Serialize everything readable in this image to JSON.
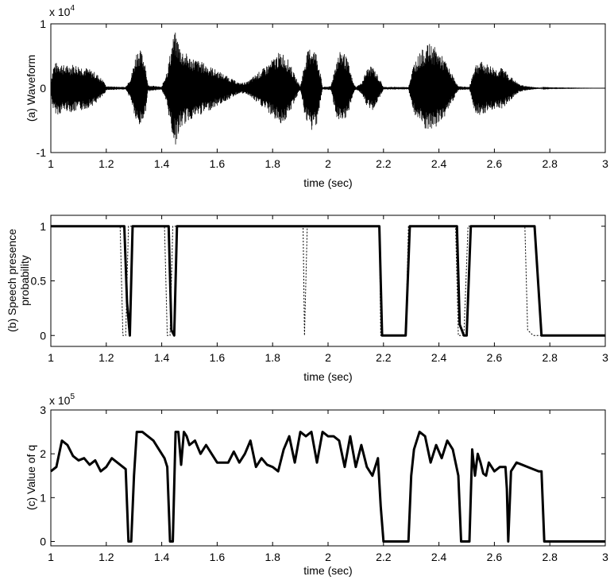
{
  "chart_data": [
    {
      "type": "line",
      "panel": "a",
      "ylabel": "(a) Waveform",
      "xlabel": "time (sec)",
      "xlim": [
        1,
        3
      ],
      "ylim": [
        -1,
        1
      ],
      "xticks": [
        "1",
        "1.2",
        "1.4",
        "1.6",
        "1.8",
        "2",
        "2.2",
        "2.4",
        "2.6",
        "2.8",
        "3"
      ],
      "yticks": [
        "-1",
        "0",
        "1"
      ],
      "exponent": {
        "base": "x 10",
        "power": "4"
      },
      "grid": false,
      "series": [
        {
          "style": "solid-thin",
          "description_envelope": [
            [
              1.0,
              0.12
            ],
            [
              1.01,
              0.38
            ],
            [
              1.03,
              0.42
            ],
            [
              1.05,
              0.35
            ],
            [
              1.08,
              0.38
            ],
            [
              1.12,
              0.34
            ],
            [
              1.16,
              0.25
            ],
            [
              1.19,
              0.12
            ],
            [
              1.2,
              0.03
            ],
            [
              1.27,
              0.02
            ],
            [
              1.29,
              0.2
            ],
            [
              1.31,
              0.6
            ],
            [
              1.32,
              0.62
            ],
            [
              1.34,
              0.45
            ],
            [
              1.35,
              0.05
            ],
            [
              1.4,
              0.02
            ],
            [
              1.42,
              0.3
            ],
            [
              1.44,
              0.78
            ],
            [
              1.45,
              0.88
            ],
            [
              1.47,
              0.62
            ],
            [
              1.5,
              0.5
            ],
            [
              1.55,
              0.4
            ],
            [
              1.6,
              0.28
            ],
            [
              1.64,
              0.18
            ],
            [
              1.68,
              0.08
            ],
            [
              1.71,
              0.1
            ],
            [
              1.74,
              0.22
            ],
            [
              1.77,
              0.32
            ],
            [
              1.8,
              0.45
            ],
            [
              1.82,
              0.55
            ],
            [
              1.84,
              0.55
            ],
            [
              1.86,
              0.42
            ],
            [
              1.88,
              0.2
            ],
            [
              1.9,
              0.03
            ],
            [
              1.92,
              0.52
            ],
            [
              1.94,
              0.68
            ],
            [
              1.96,
              0.55
            ],
            [
              1.97,
              0.3
            ],
            [
              1.98,
              0.02
            ],
            [
              2.01,
              0.03
            ],
            [
              2.03,
              0.45
            ],
            [
              2.05,
              0.62
            ],
            [
              2.07,
              0.45
            ],
            [
              2.09,
              0.1
            ],
            [
              2.1,
              0.02
            ],
            [
              2.12,
              0.08
            ],
            [
              2.14,
              0.3
            ],
            [
              2.16,
              0.35
            ],
            [
              2.18,
              0.2
            ],
            [
              2.2,
              0.02
            ],
            [
              2.29,
              0.02
            ],
            [
              2.31,
              0.4
            ],
            [
              2.33,
              0.55
            ],
            [
              2.35,
              0.65
            ],
            [
              2.37,
              0.7
            ],
            [
              2.39,
              0.62
            ],
            [
              2.42,
              0.45
            ],
            [
              2.45,
              0.2
            ],
            [
              2.47,
              0.03
            ],
            [
              2.51,
              0.02
            ],
            [
              2.53,
              0.38
            ],
            [
              2.55,
              0.42
            ],
            [
              2.57,
              0.38
            ],
            [
              2.59,
              0.35
            ],
            [
              2.61,
              0.3
            ],
            [
              2.63,
              0.32
            ],
            [
              2.66,
              0.18
            ],
            [
              2.69,
              0.06
            ],
            [
              2.72,
              0.03
            ],
            [
              2.76,
              0.01
            ],
            [
              2.8,
              0.005
            ],
            [
              3.0,
              0.0
            ]
          ]
        }
      ]
    },
    {
      "type": "line",
      "panel": "b",
      "ylabel_line1": "(b) Speech presence",
      "ylabel_line2": "probability",
      "xlabel": "time (sec)",
      "xlim": [
        1,
        3
      ],
      "ylim": [
        -0.1,
        1.1
      ],
      "xticks": [
        "1",
        "1.2",
        "1.4",
        "1.6",
        "1.8",
        "2",
        "2.2",
        "2.4",
        "2.6",
        "2.8",
        "3"
      ],
      "yticks": [
        "0",
        "0.5",
        "1"
      ],
      "grid": false,
      "series": [
        {
          "style": "solid-thick",
          "x": [
            1.0,
            1.265,
            1.275,
            1.285,
            1.295,
            1.425,
            1.435,
            1.445,
            1.455,
            2.185,
            2.195,
            2.28,
            2.295,
            2.465,
            2.475,
            2.49,
            2.5,
            2.515,
            2.745,
            2.755,
            2.77,
            2.785,
            3.0
          ],
          "y": [
            1.0,
            1.0,
            0.3,
            0.0,
            1.0,
            1.0,
            0.05,
            0.0,
            1.0,
            1.0,
            0.0,
            0.0,
            1.0,
            1.0,
            0.1,
            0.0,
            0.0,
            1.0,
            1.0,
            0.6,
            0.0,
            0.0,
            0.0
          ]
        },
        {
          "style": "dotted",
          "x": [
            1.0,
            1.25,
            1.26,
            1.27,
            1.28,
            1.41,
            1.42,
            1.43,
            1.44,
            1.91,
            1.915,
            1.925,
            2.185,
            2.19,
            2.19,
            2.28,
            2.29,
            2.46,
            2.47,
            2.49,
            2.505,
            2.71,
            2.72,
            2.74,
            2.76,
            3.0
          ],
          "y": [
            1.0,
            1.0,
            0.0,
            0.0,
            1.0,
            1.0,
            0.0,
            0.0,
            1.0,
            1.0,
            0.0,
            1.0,
            1.0,
            0.0,
            0.0,
            0.0,
            1.0,
            1.0,
            0.0,
            0.0,
            1.0,
            1.0,
            0.05,
            0.0,
            0.0,
            0.0
          ]
        }
      ]
    },
    {
      "type": "line",
      "panel": "c",
      "ylabel": "(c) Value of q",
      "xlabel": "time (sec)",
      "xlim": [
        1,
        3
      ],
      "ylim": [
        -0.1,
        3
      ],
      "xticks": [
        "1",
        "1.2",
        "1.4",
        "1.6",
        "1.8",
        "2",
        "2.2",
        "2.4",
        "2.6",
        "2.8",
        "3"
      ],
      "yticks": [
        "0",
        "1",
        "2",
        "3"
      ],
      "exponent": {
        "base": "x 10",
        "power": "5"
      },
      "grid": false,
      "series": [
        {
          "style": "solid-thick",
          "x": [
            1.0,
            1.02,
            1.04,
            1.06,
            1.08,
            1.1,
            1.12,
            1.14,
            1.16,
            1.18,
            1.2,
            1.22,
            1.24,
            1.26,
            1.27,
            1.28,
            1.29,
            1.3,
            1.31,
            1.33,
            1.35,
            1.37,
            1.39,
            1.41,
            1.42,
            1.43,
            1.44,
            1.45,
            1.46,
            1.47,
            1.48,
            1.49,
            1.5,
            1.52,
            1.54,
            1.56,
            1.58,
            1.6,
            1.62,
            1.64,
            1.66,
            1.68,
            1.7,
            1.72,
            1.74,
            1.76,
            1.78,
            1.8,
            1.82,
            1.84,
            1.86,
            1.88,
            1.9,
            1.92,
            1.94,
            1.96,
            1.98,
            2.0,
            2.02,
            2.04,
            2.06,
            2.08,
            2.1,
            2.12,
            2.14,
            2.16,
            2.18,
            2.19,
            2.2,
            2.22,
            2.24,
            2.26,
            2.28,
            2.29,
            2.3,
            2.31,
            2.33,
            2.35,
            2.37,
            2.39,
            2.41,
            2.43,
            2.45,
            2.47,
            2.48,
            2.49,
            2.5,
            2.51,
            2.52,
            2.53,
            2.54,
            2.55,
            2.56,
            2.57,
            2.58,
            2.6,
            2.62,
            2.64,
            2.645,
            2.65,
            2.66,
            2.68,
            2.7,
            2.72,
            2.74,
            2.76,
            2.77,
            2.78,
            2.8,
            2.9,
            3.0
          ],
          "y": [
            1.6,
            1.7,
            2.3,
            2.2,
            1.95,
            1.85,
            1.9,
            1.75,
            1.85,
            1.6,
            1.7,
            1.9,
            1.8,
            1.7,
            1.65,
            0.0,
            0.0,
            1.5,
            2.5,
            2.5,
            2.4,
            2.3,
            2.1,
            1.9,
            1.7,
            0.0,
            0.0,
            2.5,
            2.5,
            1.75,
            2.5,
            2.4,
            2.2,
            2.3,
            2.0,
            2.2,
            2.0,
            1.8,
            1.8,
            1.8,
            2.05,
            1.8,
            2.0,
            2.3,
            1.7,
            1.9,
            1.75,
            1.7,
            1.6,
            2.1,
            2.4,
            1.8,
            2.5,
            2.4,
            2.5,
            1.8,
            2.5,
            2.4,
            2.4,
            2.3,
            1.7,
            2.4,
            1.7,
            2.2,
            1.7,
            1.5,
            1.9,
            0.8,
            0.0,
            0.0,
            0.0,
            0.0,
            0.0,
            0.0,
            1.5,
            2.1,
            2.5,
            2.4,
            1.8,
            2.2,
            1.9,
            2.3,
            2.1,
            1.5,
            0.0,
            0.0,
            0.0,
            0.0,
            2.1,
            1.5,
            2.0,
            1.8,
            1.55,
            1.5,
            1.8,
            1.6,
            1.7,
            1.7,
            1.2,
            0.0,
            1.6,
            1.8,
            1.75,
            1.7,
            1.65,
            1.6,
            1.6,
            0.0,
            0.0,
            0.0,
            0.0
          ]
        }
      ]
    }
  ]
}
